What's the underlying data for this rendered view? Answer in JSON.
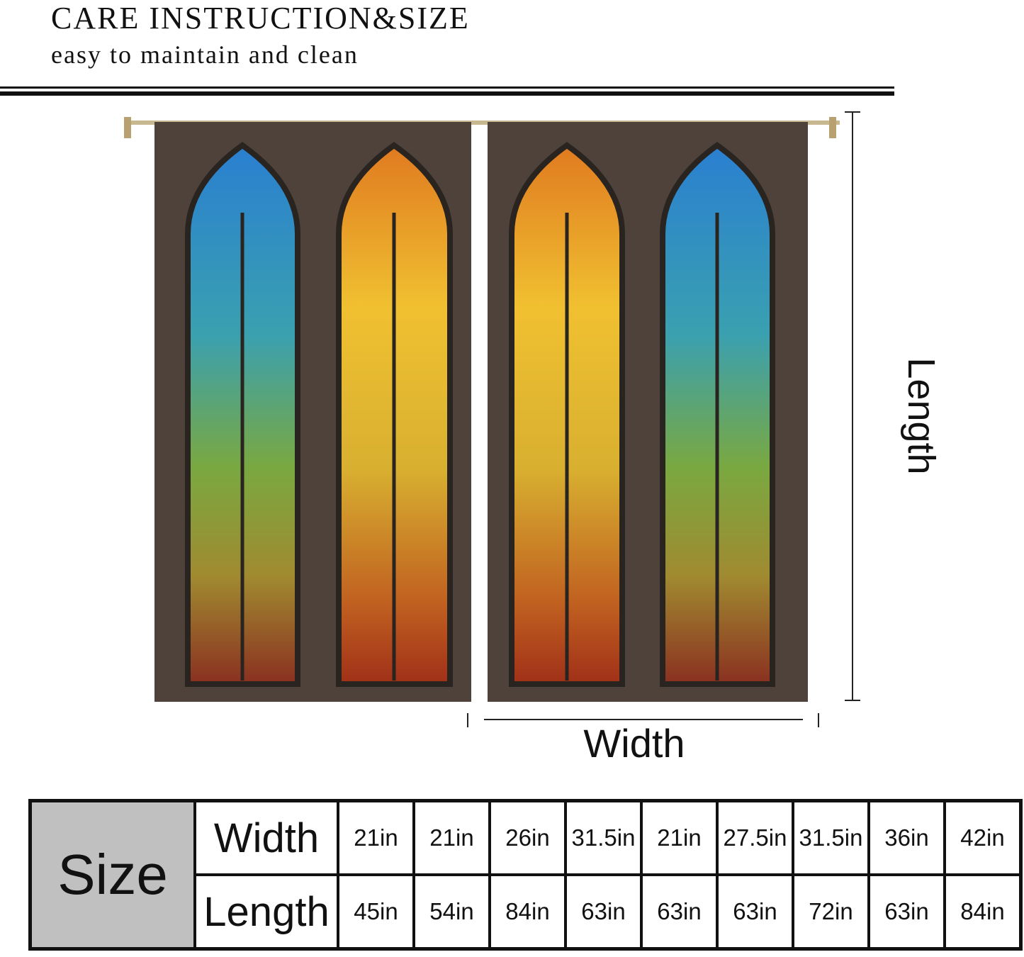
{
  "header": {
    "title": "CARE INSTRUCTION&SIZE",
    "subtitle": "easy to maintain and clean"
  },
  "diagram": {
    "length_label": "Length",
    "width_label": "Width",
    "colors": {
      "frame": "#4a3d36",
      "blue_glass": "#2f7fc0",
      "amber_glass": "#e0a020",
      "red_accent": "#d02020"
    }
  },
  "size_table": {
    "header": "Size",
    "width_label": "Width",
    "length_label": "Length",
    "widths": [
      "21in",
      "21in",
      "26in",
      "31.5in",
      "21in",
      "27.5in",
      "31.5in",
      "36in",
      "42in"
    ],
    "lengths": [
      "45in",
      "54in",
      "84in",
      "63in",
      "63in",
      "63in",
      "72in",
      "63in",
      "84in"
    ]
  }
}
